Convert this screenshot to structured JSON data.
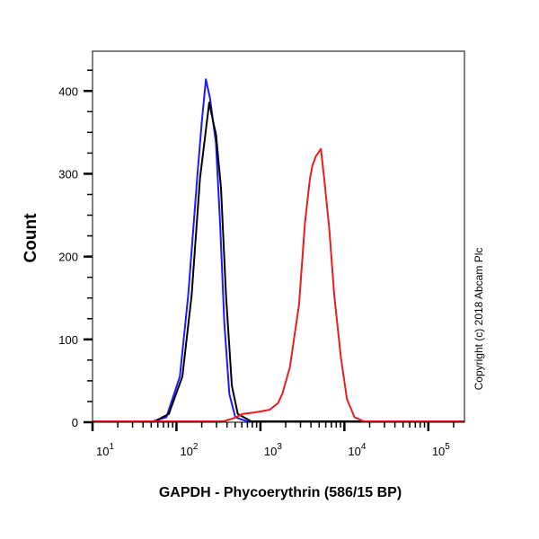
{
  "chart_data": {
    "type": "line",
    "title": "",
    "xlabel": "GAPDH - Phycoerythrin (586/15 BP)",
    "ylabel": "Count",
    "x_scale": "log",
    "xlim_log10": [
      1.0,
      5.43
    ],
    "ylim": [
      0,
      448
    ],
    "x_ticks": [
      {
        "base": "10",
        "exp": "1",
        "log": 1
      },
      {
        "base": "10",
        "exp": "2",
        "log": 2
      },
      {
        "base": "10",
        "exp": "3",
        "log": 3
      },
      {
        "base": "10",
        "exp": "4",
        "log": 4
      },
      {
        "base": "10",
        "exp": "5",
        "log": 5
      }
    ],
    "y_ticks": [
      "0",
      "100",
      "200",
      "300",
      "400"
    ],
    "grid": false,
    "annotation": "Copyright (c) 2018 Abcam Plc",
    "series": [
      {
        "name": "blue",
        "color": "#1a1aff",
        "points_log10x_count": [
          [
            1.72,
            0
          ],
          [
            1.88,
            5
          ],
          [
            2.04,
            54
          ],
          [
            2.14,
            152
          ],
          [
            2.25,
            298
          ],
          [
            2.3,
            360
          ],
          [
            2.35,
            413
          ],
          [
            2.4,
            390
          ],
          [
            2.47,
            336
          ],
          [
            2.52,
            239
          ],
          [
            2.57,
            119
          ],
          [
            2.63,
            33
          ],
          [
            2.7,
            5
          ],
          [
            2.84,
            0
          ]
        ]
      },
      {
        "name": "black",
        "color": "#000000",
        "points_log10x_count": [
          [
            1.74,
            0
          ],
          [
            1.91,
            9
          ],
          [
            2.07,
            54
          ],
          [
            2.18,
            152
          ],
          [
            2.28,
            293
          ],
          [
            2.39,
            385
          ],
          [
            2.44,
            360
          ],
          [
            2.47,
            347
          ],
          [
            2.53,
            282
          ],
          [
            2.59,
            152
          ],
          [
            2.66,
            43
          ],
          [
            2.73,
            9
          ],
          [
            2.89,
            0
          ]
        ]
      },
      {
        "name": "red",
        "color": "#e81e1e",
        "points_log10x_count": [
          [
            2.56,
            0
          ],
          [
            2.69,
            4
          ],
          [
            2.79,
            9
          ],
          [
            2.95,
            11
          ],
          [
            3.11,
            14
          ],
          [
            3.21,
            22
          ],
          [
            3.26,
            33
          ],
          [
            3.35,
            65
          ],
          [
            3.46,
            141
          ],
          [
            3.53,
            239
          ],
          [
            3.59,
            293
          ],
          [
            3.62,
            309
          ],
          [
            3.66,
            320
          ],
          [
            3.72,
            329
          ],
          [
            3.76,
            293
          ],
          [
            3.82,
            233
          ],
          [
            3.88,
            152
          ],
          [
            3.96,
            76
          ],
          [
            4.03,
            27
          ],
          [
            4.12,
            5
          ],
          [
            4.23,
            0
          ]
        ]
      }
    ]
  }
}
